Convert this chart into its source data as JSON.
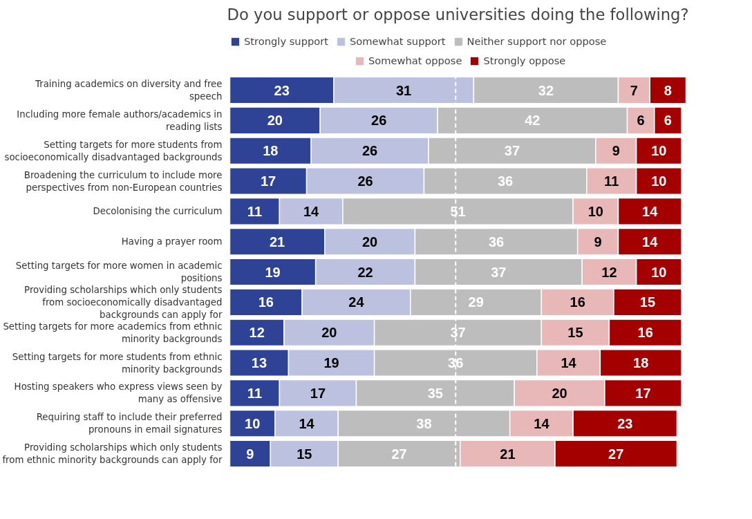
{
  "chart_data": {
    "type": "bar",
    "orientation": "horizontal",
    "stacked": true,
    "data_labels": true,
    "legend": "top",
    "grid": false,
    "title": "Do you support or oppose universities doing the following?",
    "categories": [
      "Training academics on diversity and free speech",
      "Including more female authors/academics in reading lists",
      "Setting targets for more students from socioeconomically disadvantaged backgrounds",
      "Broadening the curriculum to include more perspectives from non-European countries",
      "Decolonising the curriculum",
      "Having a prayer room",
      "Setting targets for more women in academic positions",
      "Providing scholarships which only students from socioeconomically disadvantaged backgrounds can apply for",
      "Setting targets for more academics from ethnic minority backgrounds",
      "Setting targets for more students from ethnic minority backgrounds",
      "Hosting speakers who express views seen by many as offensive",
      "Requiring staff to include their preferred pronouns in email signatures",
      "Providing scholarships which only students from ethnic minority backgrounds can apply for"
    ],
    "series": [
      {
        "name": "Strongly support",
        "color": "#2e4396",
        "values": [
          23,
          20,
          18,
          17,
          11,
          21,
          19,
          16,
          12,
          13,
          11,
          10,
          9
        ]
      },
      {
        "name": "Somewhat support",
        "color": "#bcc1e0",
        "values": [
          31,
          26,
          26,
          26,
          14,
          20,
          22,
          24,
          20,
          19,
          17,
          14,
          15
        ]
      },
      {
        "name": "Neither support nor oppose",
        "color": "#bdbdbd",
        "values": [
          32,
          42,
          37,
          36,
          51,
          36,
          37,
          29,
          37,
          36,
          35,
          38,
          27
        ]
      },
      {
        "name": "Somewhat oppose",
        "color": "#e8b7b8",
        "values": [
          7,
          6,
          9,
          11,
          10,
          9,
          12,
          16,
          15,
          14,
          20,
          14,
          21
        ]
      },
      {
        "name": "Strongly oppose",
        "color": "#a50000",
        "values": [
          8,
          6,
          10,
          10,
          14,
          14,
          10,
          15,
          16,
          18,
          17,
          23,
          27
        ]
      }
    ],
    "ref_lines": [
      {
        "axis": "x",
        "value": 50,
        "color": "#ffffff",
        "line_style": "dashed"
      }
    ]
  }
}
